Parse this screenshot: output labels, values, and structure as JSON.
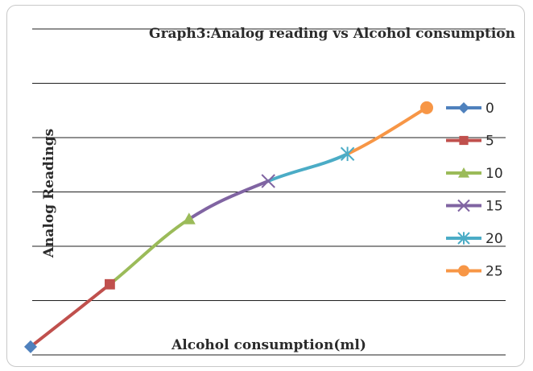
{
  "chart_data": {
    "type": "line",
    "title": "Graph3:Analog reading vs Alcohol consumption",
    "xlabel": "Alcohol consumption(ml)",
    "ylabel": "Analog Readings",
    "grid": true,
    "legend_position": "right",
    "series": [
      {
        "name": "0",
        "x": 0,
        "y": 0.15,
        "color": "#4f81bd",
        "marker": "diamond"
      },
      {
        "name": "5",
        "x": 5,
        "y": 1.3,
        "color": "#c0504d",
        "marker": "square"
      },
      {
        "name": "10",
        "x": 10,
        "y": 2.5,
        "color": "#9bbb59",
        "marker": "triangle"
      },
      {
        "name": "15",
        "x": 15,
        "y": 3.2,
        "color": "#8064a2",
        "marker": "x"
      },
      {
        "name": "20",
        "x": 20,
        "y": 3.7,
        "color": "#4bacc6",
        "marker": "star"
      },
      {
        "name": "25",
        "x": 25,
        "y": 4.55,
        "color": "#f79646",
        "marker": "circle"
      }
    ]
  }
}
